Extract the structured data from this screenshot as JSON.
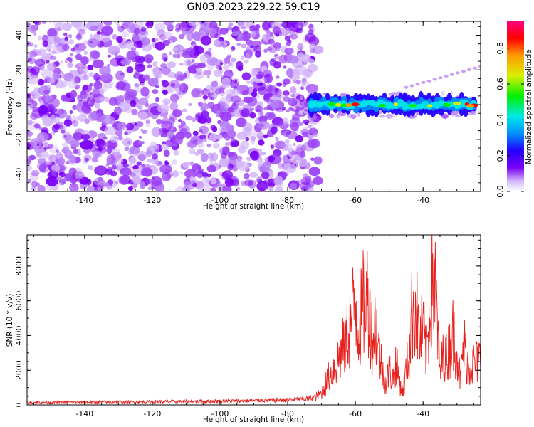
{
  "title": "GN03.2023.229.22.59.C19",
  "colors": {
    "snr_line": "#e8211d",
    "scatter_noise": [
      "#7a00f5",
      "#9b3ff6",
      "#b57ef7",
      "#d4b6fa"
    ],
    "colormap_stops": [
      "#ffffff",
      "#d2b8fa",
      "#7a00f5",
      "#2200ff",
      "#0090ff",
      "#00e8e8",
      "#00f000",
      "#d8f000",
      "#ff9a00",
      "#ff0000",
      "#ff0080"
    ]
  },
  "chart_data": [
    {
      "id": "spectrogram",
      "type": "heatmap",
      "xlabel": "Height of straight line (km)",
      "ylabel": "Frequency (Hz)",
      "xlim": [
        -157,
        -23
      ],
      "ylim": [
        -50,
        48
      ],
      "xticks": [
        -140,
        -120,
        -100,
        -80,
        -60,
        -40
      ],
      "yticks": [
        -40,
        -20,
        0,
        20,
        40
      ],
      "xtick_labels": [
        "-140",
        "-120",
        "-100",
        "-80",
        "-60",
        "-40"
      ],
      "ytick_labels": [
        "-40",
        "-20",
        "0",
        "20",
        "40"
      ],
      "noise_region": {
        "x": [
          -157,
          -71
        ],
        "y": [
          -50,
          48
        ],
        "amplitude": [
          0.0,
          0.12
        ]
      },
      "signal_band": {
        "x": [
          -75,
          -24
        ],
        "center_hz": 0,
        "halfwidth_hz": 3,
        "amplitude_range": [
          0.1,
          1.0
        ]
      },
      "harmonic_streak": {
        "x": [
          -45,
          -23
        ],
        "y": [
          10,
          22
        ],
        "amplitude": 0.12
      },
      "colorbar": {
        "label": "Normalized spectral amplitude",
        "range": [
          0.0,
          0.95
        ],
        "ticks": [
          0.0,
          0.2,
          0.4,
          0.6,
          0.8
        ],
        "tick_labels": [
          "0.0",
          "0.2",
          "0.4",
          "0.6",
          "0.8"
        ]
      }
    },
    {
      "id": "snr",
      "type": "line",
      "xlabel": "Height of straight line (km)",
      "ylabel": "SNR (10 * v/v)",
      "xlim": [
        -157,
        -23
      ],
      "ylim": [
        0,
        9800
      ],
      "xticks": [
        -140,
        -120,
        -100,
        -80,
        -60,
        -40
      ],
      "yticks": [
        0,
        2000,
        4000,
        6000,
        8000
      ],
      "xtick_labels": [
        "-140",
        "-120",
        "-100",
        "-80",
        "-60",
        "-40"
      ],
      "ytick_labels": [
        "0",
        "2000",
        "4000",
        "6000",
        "8000"
      ],
      "series": [
        {
          "x": [
            -157,
            -140,
            -120,
            -100,
            -90,
            -80,
            -75,
            -72,
            -70,
            -68,
            -66,
            -64,
            -62,
            -61,
            -60,
            -59,
            -58,
            -57,
            -56,
            -55,
            -54,
            -53,
            -52,
            -51,
            -50,
            -49,
            -48,
            -47,
            -46,
            -45,
            -44,
            -43,
            -42,
            -41,
            -40,
            -39,
            -38,
            -37,
            -36,
            -35,
            -34,
            -33,
            -32,
            -31,
            -30,
            -29,
            -28,
            -27,
            -26,
            -25,
            -24,
            -23
          ],
          "y": [
            150,
            170,
            190,
            230,
            260,
            300,
            350,
            480,
            800,
            1900,
            2700,
            3700,
            5100,
            6200,
            7400,
            5200,
            6600,
            7700,
            7200,
            4500,
            5800,
            3700,
            2500,
            1400,
            2500,
            1800,
            3000,
            1700,
            800,
            2400,
            3800,
            7200,
            6600,
            4500,
            5300,
            3400,
            6700,
            9800,
            6500,
            2200,
            3500,
            3200,
            4300,
            5000,
            3800,
            1700,
            4300,
            3100,
            2600,
            2900,
            3000,
            3200
          ]
        }
      ]
    }
  ]
}
